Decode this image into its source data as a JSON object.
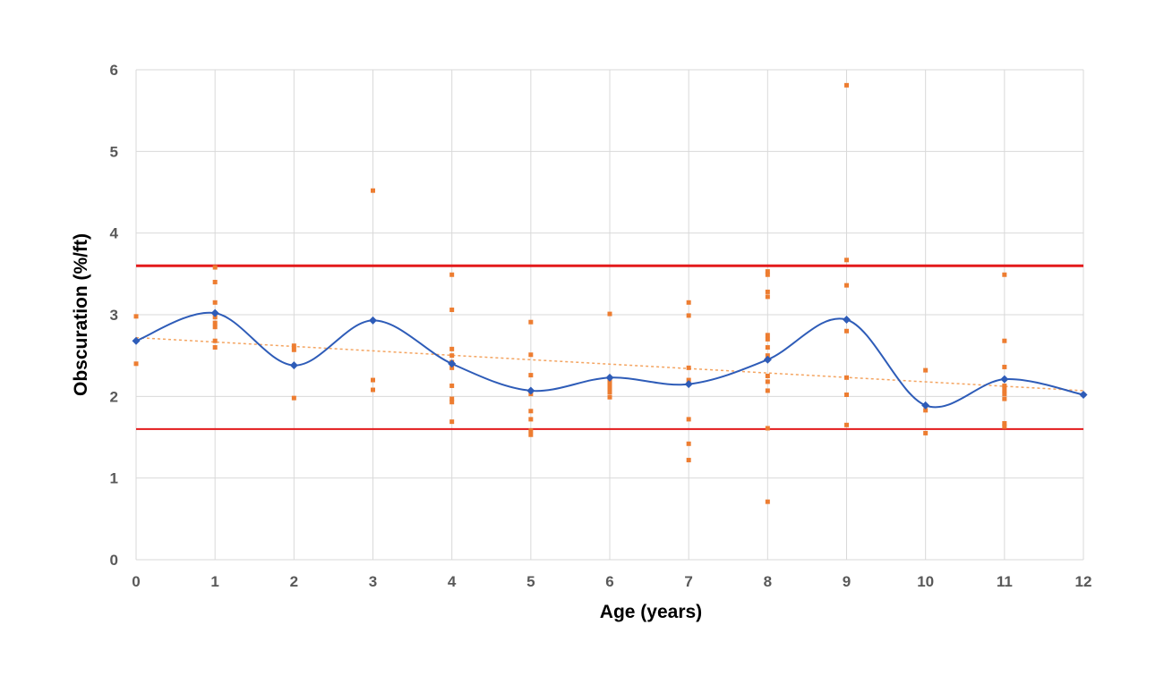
{
  "chart_data": {
    "type": "scatter",
    "title": "",
    "xlabel": "Age (years)",
    "ylabel": "Obscuration (%/ft)",
    "xlim": [
      0,
      12
    ],
    "ylim": [
      0,
      6
    ],
    "x_ticks": [
      "0",
      "1",
      "2",
      "3",
      "4",
      "5",
      "6",
      "7",
      "8",
      "9",
      "10",
      "11",
      "12"
    ],
    "y_ticks": [
      "0",
      "1",
      "2",
      "3",
      "4",
      "5",
      "6"
    ],
    "grid": true,
    "legend": "none",
    "colors": {
      "points": "#ed7d31",
      "mean_line": "#2e5cb8",
      "trend_line": "#f4a460",
      "limit_lines": "#e31a1c",
      "grid": "#d9d9d9"
    },
    "limits": [
      3.6,
      1.6
    ],
    "trendline": {
      "start": [
        0,
        2.72
      ],
      "end": [
        12,
        2.07
      ]
    },
    "mean_series": {
      "x": [
        0,
        1,
        2,
        3,
        4,
        5,
        6,
        7,
        8,
        9,
        10,
        11,
        12
      ],
      "y": [
        2.68,
        3.02,
        2.38,
        2.93,
        2.4,
        2.07,
        2.23,
        2.15,
        2.45,
        2.94,
        1.89,
        2.21,
        2.02
      ]
    },
    "scatter_points": [
      [
        0,
        2.98
      ],
      [
        0,
        2.4
      ],
      [
        1,
        3.58
      ],
      [
        1,
        3.4
      ],
      [
        1,
        3.15
      ],
      [
        1,
        2.97
      ],
      [
        1,
        2.9
      ],
      [
        1,
        2.85
      ],
      [
        1,
        2.68
      ],
      [
        1,
        2.6
      ],
      [
        2,
        2.62
      ],
      [
        2,
        2.57
      ],
      [
        2,
        1.98
      ],
      [
        3,
        4.52
      ],
      [
        3,
        2.2
      ],
      [
        3,
        2.08
      ],
      [
        4,
        3.49
      ],
      [
        4,
        3.06
      ],
      [
        4,
        2.58
      ],
      [
        4,
        2.5
      ],
      [
        4,
        2.42
      ],
      [
        4,
        2.35
      ],
      [
        4,
        2.13
      ],
      [
        4,
        1.97
      ],
      [
        4,
        1.93
      ],
      [
        4,
        1.69
      ],
      [
        5,
        2.91
      ],
      [
        5,
        2.51
      ],
      [
        5,
        2.26
      ],
      [
        5,
        2.03
      ],
      [
        5,
        1.82
      ],
      [
        5,
        1.72
      ],
      [
        5,
        1.58
      ],
      [
        5,
        1.53
      ],
      [
        6,
        3.01
      ],
      [
        6,
        2.19
      ],
      [
        6,
        2.14
      ],
      [
        6,
        2.09
      ],
      [
        6,
        2.05
      ],
      [
        6,
        1.99
      ],
      [
        7,
        3.15
      ],
      [
        7,
        2.99
      ],
      [
        7,
        2.35
      ],
      [
        7,
        2.2
      ],
      [
        7,
        1.72
      ],
      [
        7,
        1.42
      ],
      [
        7,
        1.22
      ],
      [
        8,
        3.53
      ],
      [
        8,
        3.49
      ],
      [
        8,
        3.28
      ],
      [
        8,
        3.22
      ],
      [
        8,
        2.75
      ],
      [
        8,
        2.7
      ],
      [
        8,
        2.6
      ],
      [
        8,
        2.5
      ],
      [
        8,
        2.45
      ],
      [
        8,
        2.25
      ],
      [
        8,
        2.18
      ],
      [
        8,
        2.07
      ],
      [
        8,
        1.61
      ],
      [
        8,
        0.71
      ],
      [
        9,
        5.81
      ],
      [
        9,
        3.67
      ],
      [
        9,
        3.36
      ],
      [
        9,
        2.8
      ],
      [
        9,
        2.23
      ],
      [
        9,
        2.02
      ],
      [
        9,
        1.65
      ],
      [
        10,
        2.32
      ],
      [
        10,
        1.83
      ],
      [
        10,
        1.55
      ],
      [
        11,
        3.49
      ],
      [
        11,
        2.68
      ],
      [
        11,
        2.36
      ],
      [
        11,
        2.13
      ],
      [
        11,
        2.08
      ],
      [
        11,
        2.03
      ],
      [
        11,
        1.97
      ],
      [
        11,
        1.67
      ],
      [
        11,
        1.63
      ],
      [
        12,
        2.02
      ]
    ]
  }
}
